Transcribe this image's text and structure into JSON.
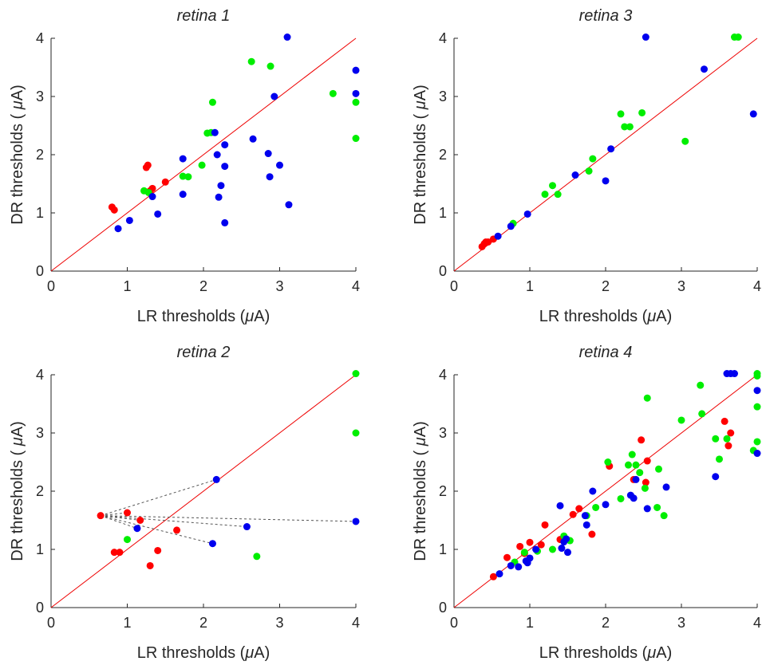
{
  "colors": {
    "red": "#ff0000",
    "green": "#00ee00",
    "blue": "#0000ee",
    "diagonal": "#ee0000",
    "connector": "#555555"
  },
  "chart_data": [
    {
      "type": "scatter",
      "title": "retina 1",
      "xlabel": "LR thresholds (μA)",
      "ylabel": "DR thresholds ( μA)",
      "xlim": [
        0,
        4
      ],
      "ylim": [
        0,
        4
      ],
      "xticks": [
        "0",
        "1",
        "2",
        "3",
        "4"
      ],
      "yticks": [
        "0",
        "1",
        "2",
        "3",
        "4"
      ],
      "grid": false,
      "reference_line": "y = x",
      "series": [
        {
          "color": "red",
          "points": [
            [
              0.8,
              1.1
            ],
            [
              0.83,
              1.05
            ],
            [
              1.25,
              1.78
            ],
            [
              1.27,
              1.82
            ],
            [
              1.3,
              1.38
            ],
            [
              1.33,
              1.42
            ],
            [
              1.5,
              1.53
            ]
          ]
        },
        {
          "color": "green",
          "points": [
            [
              1.22,
              1.38
            ],
            [
              1.28,
              1.35
            ],
            [
              1.73,
              1.63
            ],
            [
              1.8,
              1.62
            ],
            [
              1.98,
              1.82
            ],
            [
              2.05,
              2.37
            ],
            [
              2.1,
              2.38
            ],
            [
              2.12,
              2.9
            ],
            [
              2.63,
              3.6
            ],
            [
              2.88,
              3.52
            ],
            [
              3.7,
              3.05
            ],
            [
              4.0,
              2.9
            ],
            [
              4.0,
              2.28
            ]
          ]
        },
        {
          "color": "blue",
          "points": [
            [
              0.88,
              0.73
            ],
            [
              1.03,
              0.87
            ],
            [
              1.33,
              1.28
            ],
            [
              1.4,
              0.98
            ],
            [
              1.73,
              1.93
            ],
            [
              1.73,
              1.32
            ],
            [
              2.15,
              2.38
            ],
            [
              2.18,
              2.0
            ],
            [
              2.2,
              1.27
            ],
            [
              2.23,
              1.47
            ],
            [
              2.28,
              2.17
            ],
            [
              2.28,
              1.8
            ],
            [
              2.28,
              0.83
            ],
            [
              2.65,
              2.27
            ],
            [
              2.85,
              2.02
            ],
            [
              2.87,
              1.62
            ],
            [
              2.93,
              3.0
            ],
            [
              3.0,
              1.82
            ],
            [
              3.1,
              4.02
            ],
            [
              3.12,
              1.14
            ],
            [
              4.0,
              3.45
            ],
            [
              4.0,
              3.05
            ]
          ]
        }
      ]
    },
    {
      "type": "scatter",
      "title": "retina 3",
      "xlabel": "LR thresholds (μA)",
      "ylabel": "DR thresholds ( μA)",
      "xlim": [
        0,
        4
      ],
      "ylim": [
        0,
        4
      ],
      "xticks": [
        "0",
        "1",
        "2",
        "3",
        "4"
      ],
      "yticks": [
        "0",
        "1",
        "2",
        "3",
        "4"
      ],
      "grid": false,
      "reference_line": "y = x",
      "series": [
        {
          "color": "red",
          "points": [
            [
              0.37,
              0.42
            ],
            [
              0.4,
              0.47
            ],
            [
              0.42,
              0.5
            ],
            [
              0.45,
              0.5
            ],
            [
              0.52,
              0.55
            ]
          ]
        },
        {
          "color": "green",
          "points": [
            [
              0.78,
              0.82
            ],
            [
              1.2,
              1.32
            ],
            [
              1.3,
              1.47
            ],
            [
              1.37,
              1.32
            ],
            [
              1.78,
              1.72
            ],
            [
              1.83,
              1.93
            ],
            [
              2.2,
              2.7
            ],
            [
              2.25,
              2.48
            ],
            [
              2.32,
              2.48
            ],
            [
              2.48,
              2.72
            ],
            [
              3.05,
              2.23
            ],
            [
              3.7,
              4.02
            ],
            [
              3.75,
              4.02
            ]
          ]
        },
        {
          "color": "blue",
          "points": [
            [
              0.58,
              0.6
            ],
            [
              0.75,
              0.77
            ],
            [
              0.97,
              0.98
            ],
            [
              1.6,
              1.65
            ],
            [
              2.0,
              1.55
            ],
            [
              2.07,
              2.1
            ],
            [
              2.53,
              4.02
            ],
            [
              3.3,
              3.47
            ],
            [
              3.95,
              2.7
            ]
          ]
        }
      ]
    },
    {
      "type": "scatter",
      "title": "retina 2",
      "xlabel": "LR thresholds (μA)",
      "ylabel": "DR thresholds ( μA)",
      "xlim": [
        0,
        4
      ],
      "ylim": [
        0,
        4
      ],
      "xticks": [
        "0",
        "1",
        "2",
        "3",
        "4"
      ],
      "yticks": [
        "0",
        "1",
        "2",
        "3",
        "4"
      ],
      "grid": false,
      "reference_line": "y = x",
      "connector_origin": [
        0.65,
        1.58
      ],
      "connector_targets": [
        [
          2.17,
          2.2
        ],
        [
          4.0,
          1.48
        ],
        [
          2.57,
          1.39
        ],
        [
          2.12,
          1.1
        ],
        [
          1.13,
          1.36
        ],
        [
          1.0,
          1.63
        ],
        [
          1.17,
          1.5
        ]
      ],
      "series": [
        {
          "color": "red",
          "points": [
            [
              0.65,
              1.58
            ],
            [
              0.83,
              0.95
            ],
            [
              0.9,
              0.95
            ],
            [
              1.0,
              1.63
            ],
            [
              1.17,
              1.5
            ],
            [
              1.3,
              0.72
            ],
            [
              1.4,
              0.98
            ],
            [
              1.65,
              1.33
            ]
          ]
        },
        {
          "color": "green",
          "points": [
            [
              1.0,
              1.17
            ],
            [
              2.7,
              0.88
            ],
            [
              4.0,
              4.02
            ],
            [
              4.0,
              3.0
            ]
          ]
        },
        {
          "color": "blue",
          "points": [
            [
              1.13,
              1.36
            ],
            [
              2.12,
              1.1
            ],
            [
              2.17,
              2.2
            ],
            [
              2.57,
              1.39
            ],
            [
              4.0,
              1.48
            ]
          ]
        }
      ]
    },
    {
      "type": "scatter",
      "title": "retina 4",
      "xlabel": "LR thresholds (μA)",
      "ylabel": "DR thresholds ( μA)",
      "xlim": [
        0,
        4
      ],
      "ylim": [
        0,
        4
      ],
      "xticks": [
        "0",
        "1",
        "2",
        "3",
        "4"
      ],
      "yticks": [
        "0",
        "1",
        "2",
        "3",
        "4"
      ],
      "grid": false,
      "reference_line": "y = x",
      "series": [
        {
          "color": "red",
          "points": [
            [
              0.52,
              0.53
            ],
            [
              0.7,
              0.86
            ],
            [
              0.87,
              1.05
            ],
            [
              0.93,
              0.93
            ],
            [
              1.0,
              1.12
            ],
            [
              1.15,
              1.08
            ],
            [
              1.2,
              1.42
            ],
            [
              1.4,
              1.17
            ],
            [
              1.57,
              1.6
            ],
            [
              1.65,
              1.7
            ],
            [
              1.82,
              1.26
            ],
            [
              2.05,
              2.43
            ],
            [
              2.37,
              2.2
            ],
            [
              2.47,
              2.88
            ],
            [
              2.53,
              2.15
            ],
            [
              2.55,
              2.52
            ],
            [
              3.57,
              3.2
            ],
            [
              3.62,
              2.78
            ],
            [
              3.65,
              3.0
            ]
          ]
        },
        {
          "color": "green",
          "points": [
            [
              0.8,
              0.78
            ],
            [
              0.93,
              0.95
            ],
            [
              1.1,
              0.97
            ],
            [
              1.3,
              1.0
            ],
            [
              1.45,
              1.23
            ],
            [
              1.53,
              1.15
            ],
            [
              1.75,
              1.58
            ],
            [
              1.87,
              1.72
            ],
            [
              2.03,
              2.5
            ],
            [
              2.2,
              1.87
            ],
            [
              2.3,
              2.45
            ],
            [
              2.35,
              2.63
            ],
            [
              2.4,
              2.45
            ],
            [
              2.45,
              2.32
            ],
            [
              2.52,
              2.05
            ],
            [
              2.55,
              3.6
            ],
            [
              2.68,
              1.72
            ],
            [
              2.7,
              2.38
            ],
            [
              2.77,
              1.58
            ],
            [
              3.0,
              3.22
            ],
            [
              3.25,
              3.82
            ],
            [
              3.27,
              3.33
            ],
            [
              3.45,
              2.9
            ],
            [
              3.5,
              2.55
            ],
            [
              3.6,
              2.9
            ],
            [
              3.95,
              2.7
            ],
            [
              4.0,
              4.02
            ],
            [
              4.0,
              3.98
            ],
            [
              4.0,
              3.45
            ],
            [
              4.0,
              2.85
            ]
          ]
        },
        {
          "color": "blue",
          "points": [
            [
              0.6,
              0.58
            ],
            [
              0.75,
              0.72
            ],
            [
              0.85,
              0.7
            ],
            [
              0.95,
              0.8
            ],
            [
              0.97,
              0.77
            ],
            [
              1.0,
              0.85
            ],
            [
              1.08,
              1.0
            ],
            [
              1.4,
              1.75
            ],
            [
              1.42,
              1.02
            ],
            [
              1.45,
              1.13
            ],
            [
              1.48,
              1.18
            ],
            [
              1.5,
              0.95
            ],
            [
              1.73,
              1.58
            ],
            [
              1.75,
              1.42
            ],
            [
              1.83,
              2.0
            ],
            [
              2.0,
              1.77
            ],
            [
              2.33,
              1.93
            ],
            [
              2.37,
              1.88
            ],
            [
              2.4,
              2.2
            ],
            [
              2.55,
              1.7
            ],
            [
              2.8,
              2.07
            ],
            [
              3.45,
              2.25
            ],
            [
              3.6,
              4.02
            ],
            [
              3.65,
              4.02
            ],
            [
              3.7,
              4.02
            ],
            [
              4.0,
              3.73
            ],
            [
              4.0,
              2.65
            ]
          ]
        }
      ]
    }
  ]
}
